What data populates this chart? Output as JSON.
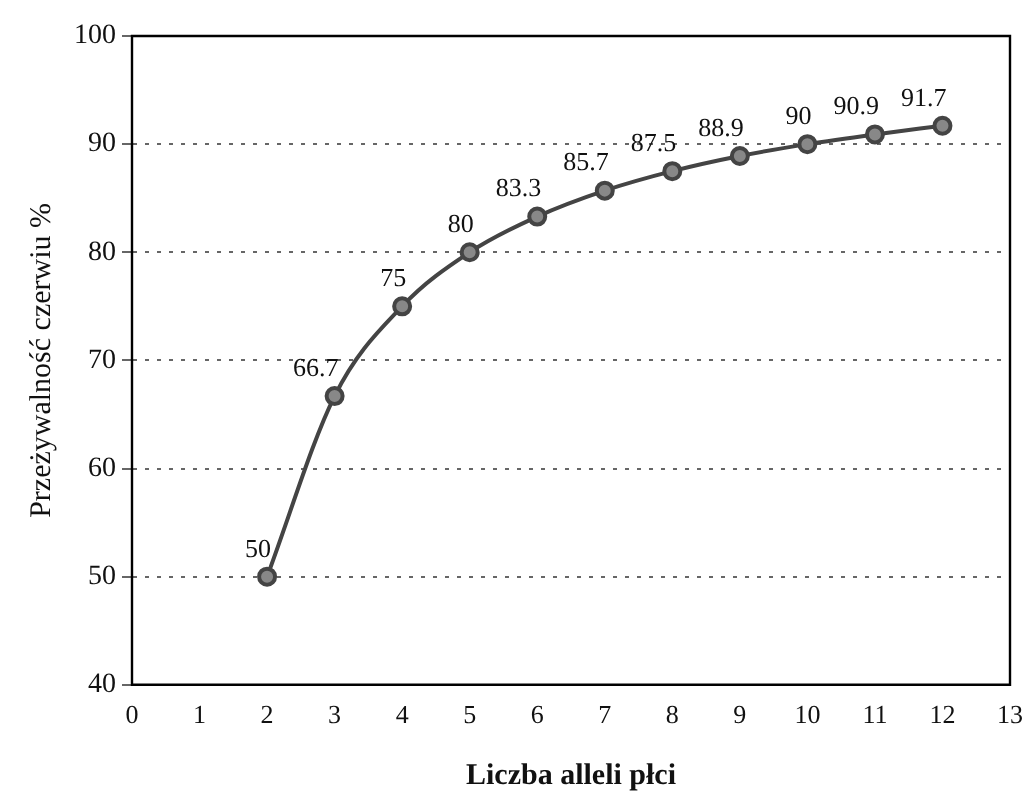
{
  "chart_data": {
    "type": "line",
    "xlabel": "Liczba alleli płci",
    "ylabel": "Przeżywalność czerwiu %",
    "x": [
      2,
      3,
      4,
      5,
      6,
      7,
      8,
      9,
      10,
      11,
      12
    ],
    "series": [
      {
        "color": "#444444",
        "values": [
          50,
          66.7,
          75,
          80,
          83.3,
          85.7,
          87.5,
          88.9,
          90,
          90.9,
          91.7
        ]
      }
    ],
    "xlim": [
      0,
      13
    ],
    "xticks": [
      0,
      1,
      2,
      3,
      4,
      5,
      6,
      7,
      8,
      9,
      10,
      11,
      12,
      13
    ],
    "ylim": [
      40,
      100
    ],
    "yticks": [
      40,
      50,
      60,
      70,
      80,
      90,
      100
    ],
    "grid": "y",
    "legend": false,
    "marker": "circle",
    "line_style": "solid",
    "data_labels": true
  }
}
